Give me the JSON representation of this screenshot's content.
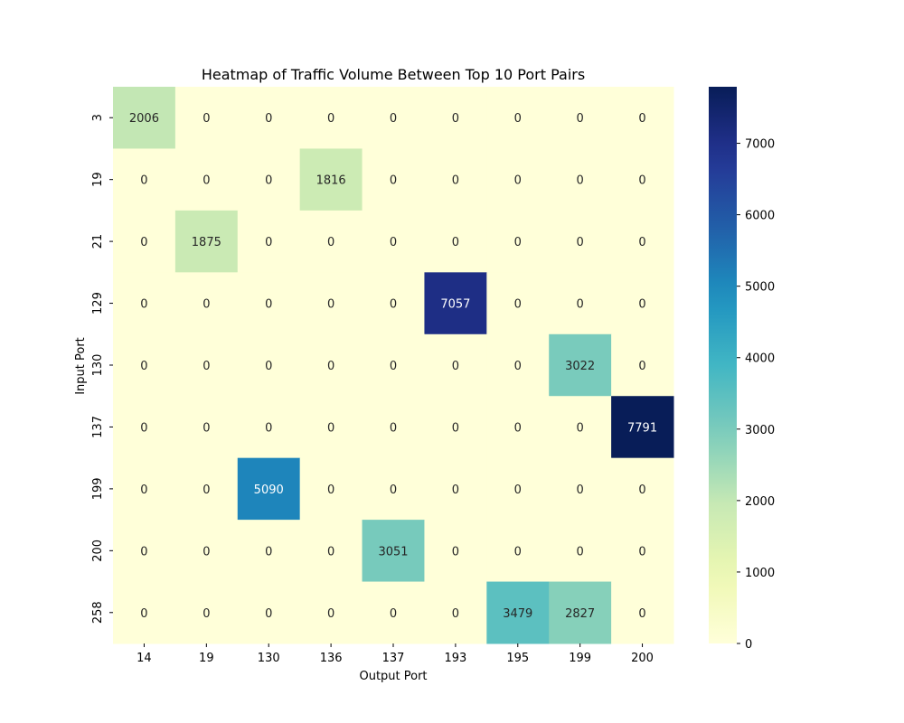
{
  "chart_data": {
    "type": "heatmap",
    "title": "Heatmap of Traffic Volume Between Top 10 Port Pairs",
    "xlabel": "Output Port",
    "ylabel": "Input Port",
    "x_categories": [
      "14",
      "19",
      "130",
      "136",
      "137",
      "193",
      "195",
      "199",
      "200"
    ],
    "y_categories": [
      "3",
      "19",
      "21",
      "129",
      "130",
      "137",
      "199",
      "200",
      "258"
    ],
    "values": [
      [
        2006,
        0,
        0,
        0,
        0,
        0,
        0,
        0,
        0
      ],
      [
        0,
        0,
        0,
        1816,
        0,
        0,
        0,
        0,
        0
      ],
      [
        0,
        1875,
        0,
        0,
        0,
        0,
        0,
        0,
        0
      ],
      [
        0,
        0,
        0,
        0,
        0,
        7057,
        0,
        0,
        0
      ],
      [
        0,
        0,
        0,
        0,
        0,
        0,
        0,
        3022,
        0
      ],
      [
        0,
        0,
        0,
        0,
        0,
        0,
        0,
        0,
        7791
      ],
      [
        0,
        0,
        5090,
        0,
        0,
        0,
        0,
        0,
        0
      ],
      [
        0,
        0,
        0,
        0,
        3051,
        0,
        0,
        0,
        0
      ],
      [
        0,
        0,
        0,
        0,
        0,
        0,
        3479,
        2827,
        0
      ]
    ],
    "colormap": "YlGnBu",
    "colorbar": {
      "min": 0,
      "max": 7791,
      "ticks": [
        0,
        1000,
        2000,
        3000,
        4000,
        5000,
        6000,
        7000
      ]
    },
    "annotations": true
  }
}
